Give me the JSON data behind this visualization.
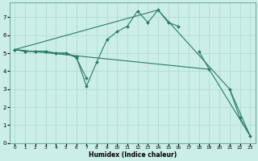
{
  "xlabel": "Humidex (Indice chaleur)",
  "bg_color": "#cceee8",
  "grid_color": "#aad8d0",
  "line_color": "#2a7a6a",
  "xlim": [
    -0.5,
    23.5
  ],
  "ylim": [
    0,
    7.8
  ],
  "xticks": [
    0,
    1,
    2,
    3,
    4,
    5,
    6,
    7,
    8,
    9,
    10,
    11,
    12,
    13,
    14,
    15,
    16,
    17,
    18,
    19,
    20,
    21,
    22,
    23
  ],
  "yticks": [
    0,
    1,
    2,
    3,
    4,
    5,
    6,
    7
  ],
  "series_jagged": {
    "x": [
      0,
      1,
      2,
      3,
      4,
      5,
      6,
      7,
      8,
      9,
      10,
      11,
      12,
      13,
      14,
      15,
      16,
      17,
      18,
      19,
      20,
      21,
      22,
      23
    ],
    "y": [
      5.2,
      5.1,
      5.1,
      5.1,
      5.0,
      5.0,
      4.8,
      3.15,
      4.5,
      5.75,
      6.2,
      6.5,
      7.35,
      6.7,
      7.4,
      6.7,
      6.5,
      null,
      5.1,
      4.1,
      null,
      3.0,
      1.4,
      0.4
    ]
  },
  "series_short": {
    "x": [
      0,
      1,
      2,
      3,
      4,
      5,
      6,
      7
    ],
    "y": [
      5.2,
      5.1,
      5.1,
      5.1,
      5.0,
      5.0,
      4.75,
      3.6
    ]
  },
  "series_line1": {
    "x": [
      0,
      14,
      21,
      23
    ],
    "y": [
      5.2,
      7.4,
      3.0,
      0.4
    ]
  },
  "series_line2": {
    "x": [
      0,
      19,
      23
    ],
    "y": [
      5.2,
      4.1,
      0.4
    ]
  }
}
